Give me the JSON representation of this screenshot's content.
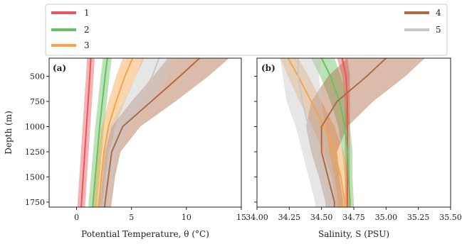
{
  "chart_data": [
    {
      "type": "line",
      "panel_label": "(a)",
      "xlabel": "Potential Temperature, θ (°C)",
      "ylabel": "Depth (m)",
      "xlim": [
        -2.5,
        15
      ],
      "ylim": [
        1800,
        320
      ],
      "xticks": [
        0,
        5,
        10,
        15
      ],
      "xtick_labels": [
        "0",
        "5",
        "10",
        "15"
      ],
      "yticks": [
        500,
        750,
        1000,
        1250,
        1500,
        1750
      ],
      "ytick_labels": [
        "500",
        "750",
        "1000",
        "1250",
        "1500",
        "1750"
      ],
      "depth": [
        320,
        500,
        750,
        1000,
        1250,
        1500,
        1750,
        1800
      ],
      "series": [
        {
          "name": "1",
          "color": "#e8575b",
          "mean": [
            1.3,
            1.2,
            1.05,
            0.9,
            0.75,
            0.6,
            0.45,
            0.42
          ],
          "lower": [
            0.95,
            0.85,
            0.7,
            0.55,
            0.4,
            0.25,
            0.1,
            0.07
          ],
          "upper": [
            1.65,
            1.55,
            1.4,
            1.25,
            1.1,
            0.95,
            0.8,
            0.77
          ]
        },
        {
          "name": "2",
          "color": "#6abf61",
          "mean": [
            2.8,
            2.6,
            2.35,
            2.1,
            1.9,
            1.7,
            1.5,
            1.47
          ],
          "lower": [
            2.4,
            2.2,
            1.95,
            1.7,
            1.5,
            1.3,
            1.1,
            1.07
          ],
          "upper": [
            3.2,
            3.0,
            2.75,
            2.5,
            2.3,
            2.1,
            1.9,
            1.87
          ]
        },
        {
          "name": "3",
          "color": "#f6a54a",
          "mean": [
            5.1,
            4.4,
            3.6,
            2.9,
            2.5,
            2.25,
            2.05,
            2.0
          ],
          "lower": [
            4.2,
            3.6,
            2.9,
            2.3,
            1.95,
            1.75,
            1.55,
            1.5
          ],
          "upper": [
            6.2,
            5.4,
            4.4,
            3.5,
            3.05,
            2.75,
            2.55,
            2.5
          ]
        },
        {
          "name": "4",
          "color": "#b06a45",
          "mean": [
            11.2,
            9.4,
            6.8,
            4.2,
            3.2,
            2.9,
            2.6,
            2.55
          ],
          "lower": [
            8.3,
            7.0,
            5.0,
            3.2,
            2.6,
            2.35,
            2.1,
            2.05
          ],
          "upper": [
            13.9,
            12.0,
            9.0,
            5.8,
            4.0,
            3.5,
            3.2,
            3.15
          ]
        },
        {
          "name": "5",
          "color": "#c8c8c8",
          "mean": [
            7.5,
            6.9,
            5.5,
            3.8,
            3.0,
            2.7,
            2.45,
            2.4
          ],
          "lower": [
            5.9,
            5.4,
            4.3,
            3.0,
            2.45,
            2.2,
            1.95,
            1.9
          ],
          "upper": [
            8.8,
            8.3,
            6.9,
            4.8,
            3.7,
            3.25,
            3.0,
            2.95
          ]
        }
      ]
    },
    {
      "type": "line",
      "panel_label": "(b)",
      "xlabel": "Salinity, S (PSU)",
      "ylabel": "",
      "xlim": [
        34.0,
        35.5
      ],
      "ylim": [
        1800,
        320
      ],
      "xticks": [
        34.0,
        34.25,
        34.5,
        34.75,
        35.0,
        35.25,
        35.5
      ],
      "xtick_labels": [
        "34.00",
        "34.25",
        "34.50",
        "34.75",
        "35.00",
        "35.25",
        "35.50"
      ],
      "depth": [
        320,
        500,
        750,
        1000,
        1250,
        1500,
        1750,
        1800
      ],
      "series": [
        {
          "name": "1",
          "color": "#e8575b",
          "mean": [
            34.66,
            34.69,
            34.7,
            34.7,
            34.7,
            34.7,
            34.7,
            34.7
          ],
          "lower": [
            34.62,
            34.66,
            34.68,
            34.68,
            34.68,
            34.68,
            34.68,
            34.68
          ],
          "upper": [
            34.7,
            34.72,
            34.72,
            34.72,
            34.72,
            34.72,
            34.72,
            34.72
          ]
        },
        {
          "name": "2",
          "color": "#6abf61",
          "mean": [
            34.5,
            34.57,
            34.64,
            34.68,
            34.7,
            34.71,
            34.72,
            34.72
          ],
          "lower": [
            34.42,
            34.49,
            34.57,
            34.63,
            34.66,
            34.68,
            34.69,
            34.69
          ],
          "upper": [
            34.6,
            34.65,
            34.7,
            34.72,
            34.74,
            34.74,
            34.75,
            34.75
          ]
        },
        {
          "name": "3",
          "color": "#f6a54a",
          "mean": [
            34.24,
            34.32,
            34.42,
            34.52,
            34.6,
            34.65,
            34.68,
            34.68
          ],
          "lower": [
            34.18,
            34.24,
            34.33,
            34.43,
            34.51,
            34.58,
            34.61,
            34.61
          ],
          "upper": [
            34.32,
            34.4,
            34.5,
            34.6,
            34.67,
            34.71,
            34.73,
            34.73
          ]
        },
        {
          "name": "4",
          "color": "#b06a45",
          "mean": [
            35.0,
            34.85,
            34.62,
            34.5,
            34.5,
            34.55,
            34.6,
            34.6
          ],
          "lower": [
            34.7,
            34.55,
            34.42,
            34.38,
            34.42,
            34.48,
            34.53,
            34.53
          ],
          "upper": [
            35.3,
            35.15,
            34.9,
            34.7,
            34.62,
            34.64,
            34.67,
            34.67
          ]
        },
        {
          "name": "5",
          "color": "#c8c8c8",
          "mean": [
            34.32,
            34.32,
            34.35,
            34.4,
            34.45,
            34.5,
            34.55,
            34.55
          ],
          "lower": [
            34.18,
            34.2,
            34.23,
            34.3,
            34.35,
            34.4,
            34.45,
            34.45
          ],
          "upper": [
            34.5,
            34.48,
            34.5,
            34.53,
            34.56,
            34.6,
            34.63,
            34.63
          ]
        }
      ]
    }
  ],
  "legend": {
    "placement": "top",
    "entries": [
      {
        "label": "1",
        "color": "#e8575b"
      },
      {
        "label": "2",
        "color": "#6abf61"
      },
      {
        "label": "3",
        "color": "#f6a54a"
      },
      {
        "label": "4",
        "color": "#b06a45"
      },
      {
        "label": "5",
        "color": "#c8c8c8"
      }
    ]
  }
}
